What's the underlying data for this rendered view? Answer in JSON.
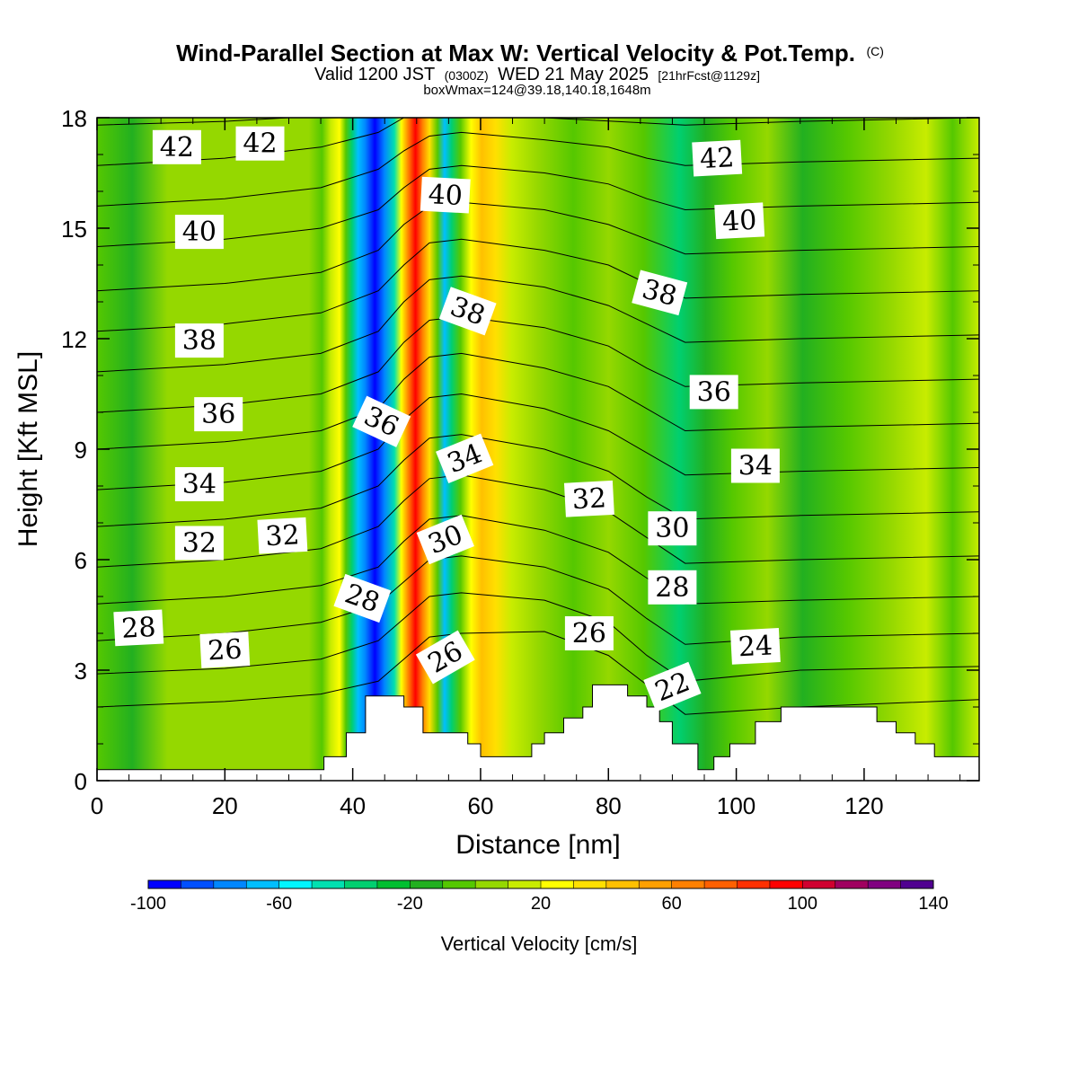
{
  "header": {
    "title": "Wind-Parallel Section at Max W: Vertical Velocity & Pot.Temp.",
    "title_mark": "(C)",
    "valid_prefix": "Valid 1200 JST",
    "valid_zulu": "(0300Z)",
    "valid_date": "WED 21 May 2025",
    "forecast": "[21hrFcst@1129z]",
    "box_info": "boxWmax=124@39.18,140.18,1648m"
  },
  "chart_data": {
    "type": "heatmap",
    "xlabel": "Distance [nm]",
    "ylabel": "Height [Kft MSL]",
    "xlim": [
      0,
      138
    ],
    "ylim": [
      0,
      18
    ],
    "x_ticks": [
      0,
      20,
      40,
      60,
      80,
      100,
      120
    ],
    "y_ticks": [
      0,
      3,
      6,
      9,
      12,
      15,
      18
    ],
    "colorbar": {
      "label": "Vertical Velocity [cm/s]",
      "min": -100,
      "max": 140,
      "step": 10,
      "tick_values": [
        -100,
        -60,
        -20,
        20,
        60,
        100,
        140
      ],
      "colors": [
        "#0000ff",
        "#0050ff",
        "#0087ff",
        "#00bfff",
        "#00f5ff",
        "#00e0b0",
        "#00cf70",
        "#00bf30",
        "#22b020",
        "#55c800",
        "#95d800",
        "#c8ec00",
        "#ffff00",
        "#ffe000",
        "#ffc000",
        "#ffa000",
        "#ff8000",
        "#ff6000",
        "#ff3000",
        "#ff0000",
        "#d00030",
        "#a00060",
        "#800080",
        "#500090"
      ]
    },
    "updraft_core": {
      "label": "max W",
      "value": 124,
      "unit": "cm/s"
    },
    "terrain": [
      [
        0,
        0.3
      ],
      [
        35.5,
        0.3
      ],
      [
        35.5,
        0.65
      ],
      [
        39,
        0.65
      ],
      [
        39,
        1.3
      ],
      [
        42,
        1.3
      ],
      [
        42,
        2.3
      ],
      [
        48,
        2.3
      ],
      [
        48,
        2.0
      ],
      [
        51,
        2.0
      ],
      [
        51,
        1.3
      ],
      [
        58,
        1.3
      ],
      [
        58,
        1.0
      ],
      [
        60,
        1.0
      ],
      [
        60,
        0.65
      ],
      [
        68,
        0.65
      ],
      [
        68,
        1.0
      ],
      [
        70,
        1.0
      ],
      [
        70,
        1.3
      ],
      [
        73,
        1.3
      ],
      [
        73,
        1.7
      ],
      [
        76,
        1.7
      ],
      [
        76,
        2.0
      ],
      [
        77.5,
        2.0
      ],
      [
        77.5,
        2.6
      ],
      [
        83,
        2.6
      ],
      [
        83,
        2.3
      ],
      [
        86,
        2.3
      ],
      [
        86,
        2.0
      ],
      [
        88,
        2.0
      ],
      [
        88,
        1.6
      ],
      [
        90,
        1.6
      ],
      [
        90,
        1.0
      ],
      [
        94,
        1.0
      ],
      [
        94,
        0.3
      ],
      [
        96.5,
        0.3
      ],
      [
        96.5,
        0.65
      ],
      [
        99,
        0.65
      ],
      [
        99,
        1.0
      ],
      [
        103,
        1.0
      ],
      [
        103,
        1.6
      ],
      [
        107,
        1.6
      ],
      [
        107,
        2.0
      ],
      [
        122,
        2.0
      ],
      [
        122,
        1.6
      ],
      [
        125,
        1.6
      ],
      [
        125,
        1.3
      ],
      [
        128,
        1.3
      ],
      [
        128,
        1.0
      ],
      [
        131,
        1.0
      ],
      [
        131,
        0.65
      ],
      [
        138,
        0.65
      ]
    ],
    "contour_labels": [
      {
        "text": "42",
        "x": 12.5,
        "y": 17.2,
        "angle": 0
      },
      {
        "text": "42",
        "x": 25.5,
        "y": 17.3,
        "angle": 0
      },
      {
        "text": "42",
        "x": 97,
        "y": 16.9,
        "angle": -3
      },
      {
        "text": "40",
        "x": 16,
        "y": 14.9,
        "angle": 0
      },
      {
        "text": "40",
        "x": 54.5,
        "y": 15.9,
        "angle": 3
      },
      {
        "text": "40",
        "x": 100.5,
        "y": 15.2,
        "angle": -3
      },
      {
        "text": "38",
        "x": 16,
        "y": 11.95,
        "angle": 0
      },
      {
        "text": "38",
        "x": 58,
        "y": 12.75,
        "angle": 20
      },
      {
        "text": "38",
        "x": 88,
        "y": 13.25,
        "angle": 15
      },
      {
        "text": "36",
        "x": 19,
        "y": 9.95,
        "angle": 0
      },
      {
        "text": "36",
        "x": 44.5,
        "y": 9.75,
        "angle": 25
      },
      {
        "text": "36",
        "x": 96.5,
        "y": 10.55,
        "angle": 0
      },
      {
        "text": "34",
        "x": 16,
        "y": 8.05,
        "angle": 0
      },
      {
        "text": "34",
        "x": 57.5,
        "y": 8.75,
        "angle": -22
      },
      {
        "text": "34",
        "x": 103,
        "y": 8.55,
        "angle": 0
      },
      {
        "text": "32",
        "x": 16,
        "y": 6.45,
        "angle": 0
      },
      {
        "text": "32",
        "x": 29,
        "y": 6.65,
        "angle": -3
      },
      {
        "text": "32",
        "x": 77,
        "y": 7.65,
        "angle": -3
      },
      {
        "text": "30",
        "x": 54.5,
        "y": 6.55,
        "angle": -22
      },
      {
        "text": "30",
        "x": 90,
        "y": 6.85,
        "angle": 0
      },
      {
        "text": "28",
        "x": 6.5,
        "y": 4.15,
        "angle": -3
      },
      {
        "text": "28",
        "x": 41.5,
        "y": 4.95,
        "angle": 20
      },
      {
        "text": "28",
        "x": 90,
        "y": 5.25,
        "angle": 0
      },
      {
        "text": "26",
        "x": 20,
        "y": 3.55,
        "angle": -3
      },
      {
        "text": "26",
        "x": 54.5,
        "y": 3.35,
        "angle": -30
      },
      {
        "text": "26",
        "x": 77,
        "y": 4.0,
        "angle": 0
      },
      {
        "text": "24",
        "x": 103,
        "y": 3.65,
        "angle": -3
      },
      {
        "text": "22",
        "x": 90,
        "y": 2.55,
        "angle": -22
      }
    ],
    "isentropes": [
      [
        [
          0,
          2.0
        ],
        [
          20,
          2.15
        ],
        [
          35,
          2.35
        ],
        [
          44,
          2.7
        ],
        [
          48,
          3.3
        ],
        [
          52,
          3.9
        ],
        [
          57,
          4.0
        ],
        [
          70,
          4.05
        ],
        [
          80,
          3.4
        ],
        [
          86,
          2.6
        ],
        [
          92,
          1.8
        ],
        [
          110,
          2.0
        ],
        [
          138,
          2.2
        ]
      ],
      [
        [
          0,
          2.9
        ],
        [
          20,
          3.05
        ],
        [
          35,
          3.3
        ],
        [
          44,
          3.8
        ],
        [
          48,
          4.4
        ],
        [
          52,
          5.0
        ],
        [
          57,
          5.1
        ],
        [
          70,
          4.9
        ],
        [
          80,
          4.3
        ],
        [
          86,
          3.4
        ],
        [
          92,
          2.7
        ],
        [
          110,
          3.0
        ],
        [
          138,
          3.1
        ]
      ],
      [
        [
          0,
          3.8
        ],
        [
          20,
          4.0
        ],
        [
          35,
          4.3
        ],
        [
          44,
          4.8
        ],
        [
          48,
          5.4
        ],
        [
          52,
          6.0
        ],
        [
          57,
          6.1
        ],
        [
          70,
          5.8
        ],
        [
          80,
          5.2
        ],
        [
          86,
          4.4
        ],
        [
          92,
          3.7
        ],
        [
          110,
          3.9
        ],
        [
          138,
          4.0
        ]
      ],
      [
        [
          0,
          4.8
        ],
        [
          20,
          5.0
        ],
        [
          35,
          5.3
        ],
        [
          44,
          5.8
        ],
        [
          48,
          6.5
        ],
        [
          52,
          7.1
        ],
        [
          57,
          7.2
        ],
        [
          70,
          6.8
        ],
        [
          80,
          6.2
        ],
        [
          86,
          5.5
        ],
        [
          92,
          4.8
        ],
        [
          110,
          4.9
        ],
        [
          138,
          5.0
        ]
      ],
      [
        [
          0,
          5.8
        ],
        [
          20,
          6.0
        ],
        [
          35,
          6.3
        ],
        [
          44,
          6.9
        ],
        [
          48,
          7.6
        ],
        [
          52,
          8.2
        ],
        [
          57,
          8.3
        ],
        [
          70,
          7.9
        ],
        [
          80,
          7.3
        ],
        [
          86,
          6.6
        ],
        [
          92,
          5.9
        ],
        [
          110,
          6.0
        ],
        [
          138,
          6.1
        ]
      ],
      [
        [
          0,
          6.9
        ],
        [
          20,
          7.1
        ],
        [
          35,
          7.4
        ],
        [
          44,
          8.0
        ],
        [
          48,
          8.7
        ],
        [
          52,
          9.3
        ],
        [
          57,
          9.4
        ],
        [
          70,
          9.0
        ],
        [
          80,
          8.4
        ],
        [
          86,
          7.7
        ],
        [
          92,
          7.1
        ],
        [
          110,
          7.2
        ],
        [
          138,
          7.3
        ]
      ],
      [
        [
          0,
          7.9
        ],
        [
          20,
          8.1
        ],
        [
          35,
          8.4
        ],
        [
          44,
          9.0
        ],
        [
          48,
          9.8
        ],
        [
          52,
          10.4
        ],
        [
          57,
          10.5
        ],
        [
          70,
          10.1
        ],
        [
          80,
          9.5
        ],
        [
          86,
          8.9
        ],
        [
          92,
          8.3
        ],
        [
          110,
          8.4
        ],
        [
          138,
          8.5
        ]
      ],
      [
        [
          0,
          9.0
        ],
        [
          20,
          9.2
        ],
        [
          35,
          9.5
        ],
        [
          44,
          10.1
        ],
        [
          48,
          10.9
        ],
        [
          52,
          11.5
        ],
        [
          57,
          11.6
        ],
        [
          70,
          11.2
        ],
        [
          80,
          10.7
        ],
        [
          86,
          10.1
        ],
        [
          92,
          9.5
        ],
        [
          110,
          9.6
        ],
        [
          138,
          9.7
        ]
      ],
      [
        [
          0,
          10.0
        ],
        [
          20,
          10.2
        ],
        [
          35,
          10.5
        ],
        [
          44,
          11.1
        ],
        [
          48,
          11.9
        ],
        [
          52,
          12.5
        ],
        [
          57,
          12.6
        ],
        [
          70,
          12.3
        ],
        [
          80,
          11.8
        ],
        [
          86,
          11.2
        ],
        [
          92,
          10.7
        ],
        [
          110,
          10.8
        ],
        [
          138,
          10.9
        ]
      ],
      [
        [
          0,
          11.1
        ],
        [
          20,
          11.3
        ],
        [
          35,
          11.6
        ],
        [
          44,
          12.2
        ],
        [
          48,
          13.0
        ],
        [
          52,
          13.6
        ],
        [
          57,
          13.7
        ],
        [
          70,
          13.4
        ],
        [
          80,
          12.9
        ],
        [
          86,
          12.4
        ],
        [
          92,
          11.9
        ],
        [
          110,
          12.0
        ],
        [
          138,
          12.1
        ]
      ],
      [
        [
          0,
          12.2
        ],
        [
          20,
          12.4
        ],
        [
          35,
          12.7
        ],
        [
          44,
          13.3
        ],
        [
          48,
          14.0
        ],
        [
          52,
          14.6
        ],
        [
          57,
          14.7
        ],
        [
          70,
          14.4
        ],
        [
          80,
          14.0
        ],
        [
          86,
          13.5
        ],
        [
          92,
          13.1
        ],
        [
          110,
          13.2
        ],
        [
          138,
          13.3
        ]
      ],
      [
        [
          0,
          13.3
        ],
        [
          20,
          13.5
        ],
        [
          35,
          13.8
        ],
        [
          44,
          14.4
        ],
        [
          48,
          15.1
        ],
        [
          52,
          15.6
        ],
        [
          57,
          15.7
        ],
        [
          70,
          15.5
        ],
        [
          80,
          15.1
        ],
        [
          86,
          14.7
        ],
        [
          92,
          14.3
        ],
        [
          110,
          14.4
        ],
        [
          138,
          14.5
        ]
      ],
      [
        [
          0,
          14.5
        ],
        [
          20,
          14.7
        ],
        [
          35,
          15.0
        ],
        [
          44,
          15.5
        ],
        [
          48,
          16.1
        ],
        [
          52,
          16.6
        ],
        [
          57,
          16.7
        ],
        [
          70,
          16.5
        ],
        [
          80,
          16.2
        ],
        [
          86,
          15.8
        ],
        [
          92,
          15.5
        ],
        [
          110,
          15.6
        ],
        [
          138,
          15.7
        ]
      ],
      [
        [
          0,
          15.6
        ],
        [
          20,
          15.8
        ],
        [
          35,
          16.1
        ],
        [
          44,
          16.6
        ],
        [
          48,
          17.1
        ],
        [
          52,
          17.5
        ],
        [
          57,
          17.6
        ],
        [
          70,
          17.4
        ],
        [
          80,
          17.2
        ],
        [
          86,
          16.9
        ],
        [
          92,
          16.7
        ],
        [
          110,
          16.8
        ],
        [
          138,
          16.9
        ]
      ],
      [
        [
          0,
          16.7
        ],
        [
          20,
          16.9
        ],
        [
          35,
          17.2
        ],
        [
          44,
          17.6
        ],
        [
          48,
          18.0
        ],
        [
          70,
          18.0
        ],
        [
          92,
          17.8
        ],
        [
          110,
          17.9
        ],
        [
          138,
          18.0
        ]
      ],
      [
        [
          0,
          17.8
        ],
        [
          20,
          17.9
        ],
        [
          30,
          18.0
        ]
      ]
    ]
  }
}
